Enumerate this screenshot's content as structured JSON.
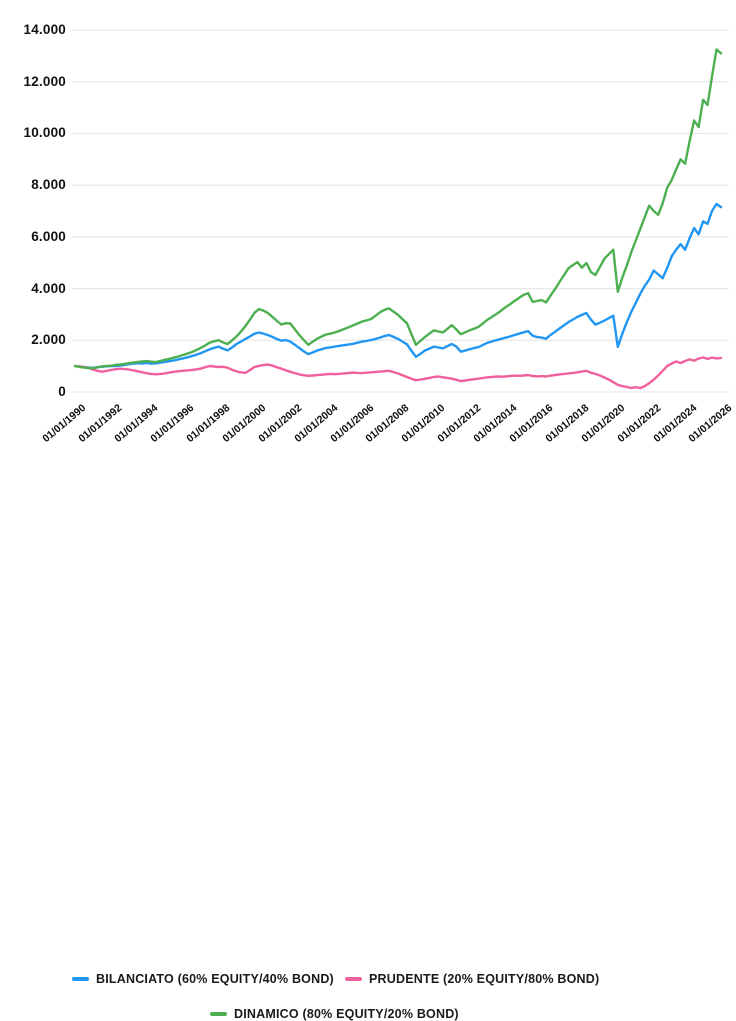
{
  "chart_data": {
    "type": "line",
    "title": "",
    "xlabel": "",
    "ylabel": "",
    "x_axis": {
      "tick_labels": [
        "01/01/1990",
        "01/01/1992",
        "01/01/1994",
        "01/01/1996",
        "01/01/1998",
        "01/01/2000",
        "01/01/2002",
        "01/01/2004",
        "01/01/2006",
        "01/01/2008",
        "01/01/2010",
        "01/01/2012",
        "01/01/2014",
        "01/01/2016",
        "01/01/2018",
        "01/01/2020",
        "01/01/2022",
        "01/01/2024",
        "01/01/2026"
      ],
      "tick_years": [
        1990,
        1992,
        1994,
        1996,
        1998,
        2000,
        2002,
        2004,
        2006,
        2008,
        2010,
        2012,
        2014,
        2016,
        2018,
        2020,
        2022,
        2024,
        2026
      ],
      "range": [
        1990,
        2026
      ]
    },
    "y_axis": {
      "tick_labels": [
        "0",
        "2.000",
        "4.000",
        "6.000",
        "8.000",
        "10.000",
        "12.000",
        "14.000"
      ],
      "tick_values": [
        0,
        2000,
        4000,
        6000,
        8000,
        10000,
        12000,
        14000
      ],
      "range": [
        0,
        14000
      ],
      "grid": true,
      "grid_color": "#e8e8e8"
    },
    "x_start": 1990,
    "x_step": 0.25,
    "legend_position": "bottom",
    "series": [
      {
        "name": "BILANCIATO (60% EQUITY/40% BOND)",
        "color": "#2196F3",
        "values": [
          1000,
          985,
          960,
          945,
          935,
          960,
          980,
          995,
          1010,
          1000,
          1020,
          1045,
          1075,
          1100,
          1115,
          1105,
          1120,
          1095,
          1110,
          1135,
          1160,
          1190,
          1220,
          1255,
          1300,
          1340,
          1385,
          1440,
          1500,
          1575,
          1650,
          1705,
          1755,
          1680,
          1610,
          1720,
          1855,
          1950,
          2055,
          2150,
          2250,
          2300,
          2260,
          2200,
          2130,
          2050,
          1985,
          2010,
          1950,
          1830,
          1700,
          1570,
          1465,
          1530,
          1605,
          1655,
          1705,
          1730,
          1760,
          1785,
          1810,
          1840,
          1865,
          1905,
          1950,
          1975,
          2010,
          2055,
          2105,
          2160,
          2205,
          2130,
          2055,
          1950,
          1845,
          1590,
          1360,
          1475,
          1605,
          1680,
          1755,
          1720,
          1690,
          1770,
          1855,
          1755,
          1560,
          1605,
          1655,
          1700,
          1745,
          1825,
          1905,
          1955,
          2010,
          2055,
          2105,
          2150,
          2205,
          2255,
          2310,
          2355,
          2180,
          2125,
          2105,
          2060,
          2205,
          2330,
          2455,
          2580,
          2705,
          2805,
          2905,
          2980,
          3055,
          2800,
          2605,
          2680,
          2760,
          2855,
          2950,
          1750,
          2250,
          2700,
          3100,
          3450,
          3800,
          4100,
          4350,
          4700,
          4550,
          4400,
          4800,
          5250,
          5500,
          5720,
          5500,
          5950,
          6340,
          6100,
          6600,
          6500,
          7000,
          7270,
          7150
        ]
      },
      {
        "name": "PRUDENTE (20% EQUITY/80% BOND)",
        "color": "#F0609C",
        "values": [
          1000,
          990,
          975,
          930,
          870,
          820,
          785,
          815,
          850,
          880,
          900,
          885,
          870,
          835,
          800,
          760,
          725,
          700,
          685,
          700,
          720,
          750,
          780,
          800,
          820,
          835,
          850,
          875,
          900,
          960,
          1000,
          985,
          965,
          975,
          940,
          860,
          795,
          760,
          740,
          850,
          965,
          1010,
          1040,
          1060,
          1020,
          960,
          900,
          840,
          780,
          730,
          680,
          650,
          625,
          640,
          655,
          670,
          685,
          700,
          690,
          705,
          720,
          735,
          750,
          740,
          730,
          745,
          760,
          775,
          790,
          805,
          820,
          770,
          720,
          650,
          580,
          510,
          455,
          480,
          510,
          545,
          580,
          600,
          570,
          545,
          520,
          470,
          420,
          445,
          470,
          495,
          520,
          545,
          570,
          585,
          600,
          590,
          605,
          620,
          635,
          625,
          640,
          655,
          620,
          605,
          615,
          600,
          630,
          655,
          680,
          700,
          720,
          740,
          760,
          790,
          820,
          745,
          700,
          640,
          560,
          480,
          380,
          280,
          230,
          190,
          160,
          185,
          150,
          230,
          340,
          480,
          640,
          820,
          1000,
          1100,
          1180,
          1120,
          1200,
          1260,
          1210,
          1290,
          1340,
          1280,
          1330,
          1300,
          1320
        ]
      },
      {
        "name": "DINAMICO (80% EQUITY/20% BOND)",
        "color": "#4CAF50",
        "values": [
          1000,
          970,
          945,
          925,
          915,
          955,
          985,
          1005,
          1015,
          1045,
          1065,
          1085,
          1115,
          1140,
          1165,
          1180,
          1195,
          1170,
          1155,
          1195,
          1245,
          1280,
          1325,
          1370,
          1430,
          1480,
          1545,
          1615,
          1705,
          1800,
          1905,
          1960,
          2005,
          1920,
          1855,
          1990,
          2150,
          2340,
          2555,
          2800,
          3060,
          3205,
          3150,
          3050,
          2905,
          2750,
          2610,
          2660,
          2650,
          2430,
          2205,
          2010,
          1825,
          1950,
          2065,
          2150,
          2225,
          2260,
          2305,
          2370,
          2435,
          2505,
          2575,
          2650,
          2725,
          2770,
          2825,
          2950,
          3085,
          3180,
          3235,
          3110,
          2985,
          2820,
          2655,
          2230,
          1825,
          1975,
          2125,
          2260,
          2385,
          2340,
          2305,
          2440,
          2585,
          2420,
          2235,
          2310,
          2385,
          2450,
          2525,
          2660,
          2805,
          2910,
          3025,
          3150,
          3285,
          3400,
          3525,
          3640,
          3755,
          3820,
          3490,
          3520,
          3555,
          3465,
          3725,
          3980,
          4255,
          4520,
          4785,
          4910,
          5025,
          4810,
          4985,
          4640,
          4525,
          4840,
          5155,
          5330,
          5505,
          3880,
          4420,
          4890,
          5410,
          5860,
          6310,
          6760,
          7210,
          7000,
          6850,
          7300,
          7900,
          8200,
          8600,
          9000,
          8830,
          9700,
          10500,
          10250,
          11300,
          11100,
          12200,
          13250,
          13100
        ]
      }
    ]
  },
  "colors": {
    "background": "#ffffff",
    "grid": "#e8e8e8",
    "text": "#111111",
    "bilanciato": "#2196F3",
    "prudente": "#F0609C",
    "dinamico": "#4CAF50"
  }
}
